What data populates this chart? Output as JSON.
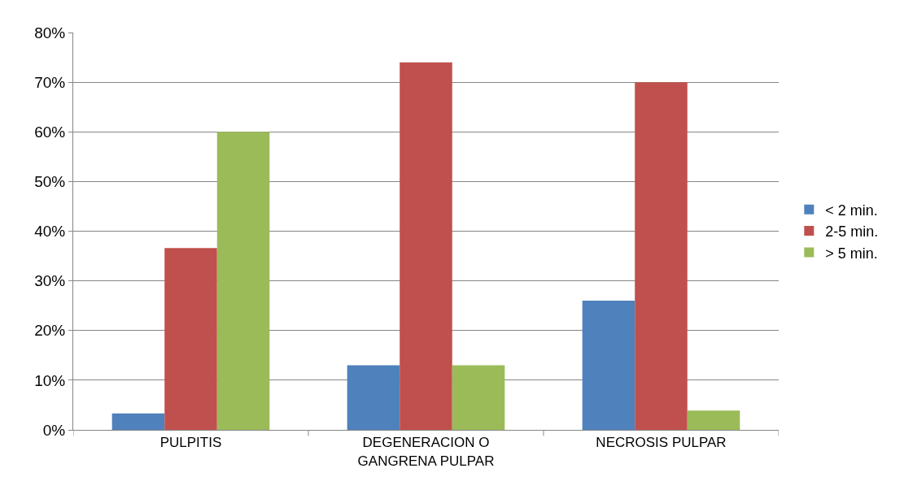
{
  "chart_data": {
    "type": "bar",
    "categories": [
      "PULPITIS",
      "DEGENERACION O GANGRENA PULPAR",
      "NECROSIS PULPAR"
    ],
    "series": [
      {
        "name": "< 2 min.",
        "color": "#4f81bd",
        "values": [
          3.3,
          13,
          26
        ]
      },
      {
        "name": "2-5 min.",
        "color": "#c0504d",
        "values": [
          36.6,
          74,
          70
        ]
      },
      {
        "name": "> 5 min.",
        "color": "#9bbb59",
        "values": [
          60,
          13,
          3.9
        ]
      }
    ],
    "ylim": [
      0,
      80
    ],
    "yticks": [
      {
        "value": 0,
        "label": "0%"
      },
      {
        "value": 10,
        "label": "10%"
      },
      {
        "value": 20,
        "label": "20%"
      },
      {
        "value": 30,
        "label": "30%"
      },
      {
        "value": 40,
        "label": "40%"
      },
      {
        "value": 50,
        "label": "50%"
      },
      {
        "value": 60,
        "label": "60%"
      },
      {
        "value": 70,
        "label": "70%"
      },
      {
        "value": 80,
        "label": "80%"
      }
    ],
    "grid": "y",
    "legend": "right"
  }
}
